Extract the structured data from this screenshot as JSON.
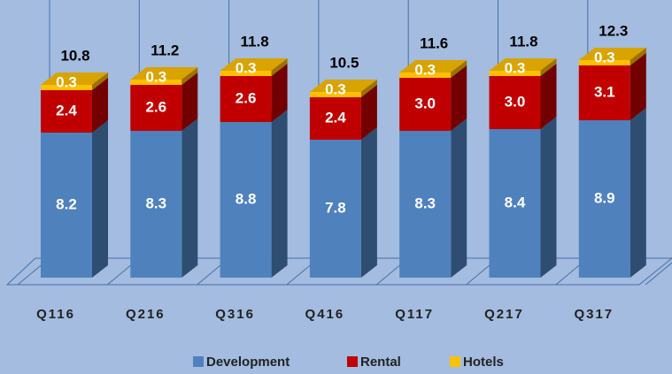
{
  "chart_data": {
    "type": "bar3d_stacked",
    "categories": [
      "Q116",
      "Q216",
      "Q316",
      "Q416",
      "Q117",
      "Q217",
      "Q317"
    ],
    "series": [
      {
        "name": "Development",
        "color": "#4f81bd",
        "values": [
          8.2,
          8.3,
          8.8,
          7.8,
          8.3,
          8.4,
          8.9
        ]
      },
      {
        "name": "Rental",
        "color": "#c00000",
        "values": [
          2.4,
          2.6,
          2.6,
          2.4,
          3.0,
          3.0,
          3.1
        ]
      },
      {
        "name": "Hotels",
        "color": "#ffc000",
        "values": [
          0.3,
          0.3,
          0.3,
          0.3,
          0.3,
          0.3,
          0.3
        ]
      }
    ],
    "totals": [
      10.8,
      11.2,
      11.8,
      10.5,
      11.6,
      11.8,
      12.3
    ],
    "value_labels": [
      [
        "8.2",
        "8.3",
        "8.8",
        "7.8",
        "8.3",
        "8.4",
        "8.9"
      ],
      [
        "2.4",
        "2.6",
        "2.6",
        "2.4",
        "3.0",
        "3.0",
        "3.1"
      ],
      [
        "0.3",
        "0.3",
        "0.3",
        "0.3",
        "0.3",
        "0.3",
        "0.3"
      ]
    ],
    "ylim": [
      0,
      14
    ],
    "legend": "bottom"
  }
}
